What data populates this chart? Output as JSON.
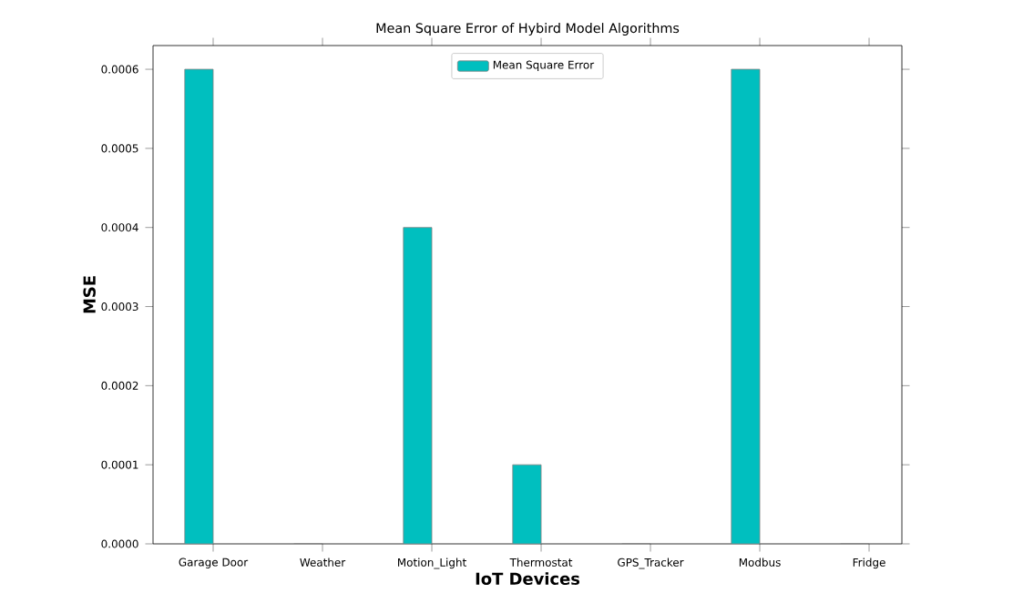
{
  "chart_data": {
    "type": "bar",
    "title": "Mean Square Error of Hybird Model Algorithms",
    "xlabel": "IoT Devices",
    "ylabel": "MSE",
    "categories": [
      "Garage Door",
      "Weather",
      "Motion_Light",
      "Thermostat",
      "GPS_Tracker",
      "Modbus",
      "Fridge"
    ],
    "series": [
      {
        "name": "Mean Square Error",
        "color": "#00bfbf",
        "values": [
          0.0006,
          0,
          0.0004,
          0.0001,
          0,
          0.0006,
          0
        ]
      }
    ],
    "ylim": [
      0,
      0.00063
    ],
    "yticks": [
      {
        "value": 0,
        "label": "0.0000"
      },
      {
        "value": 0.0001,
        "label": "0.0001"
      },
      {
        "value": 0.0002,
        "label": "0.0002"
      },
      {
        "value": 0.0003,
        "label": "0.0003"
      },
      {
        "value": 0.0004,
        "label": "0.0004"
      },
      {
        "value": 0.0005,
        "label": "0.0005"
      },
      {
        "value": 0.0006,
        "label": "0.0006"
      }
    ],
    "legend": "top"
  }
}
